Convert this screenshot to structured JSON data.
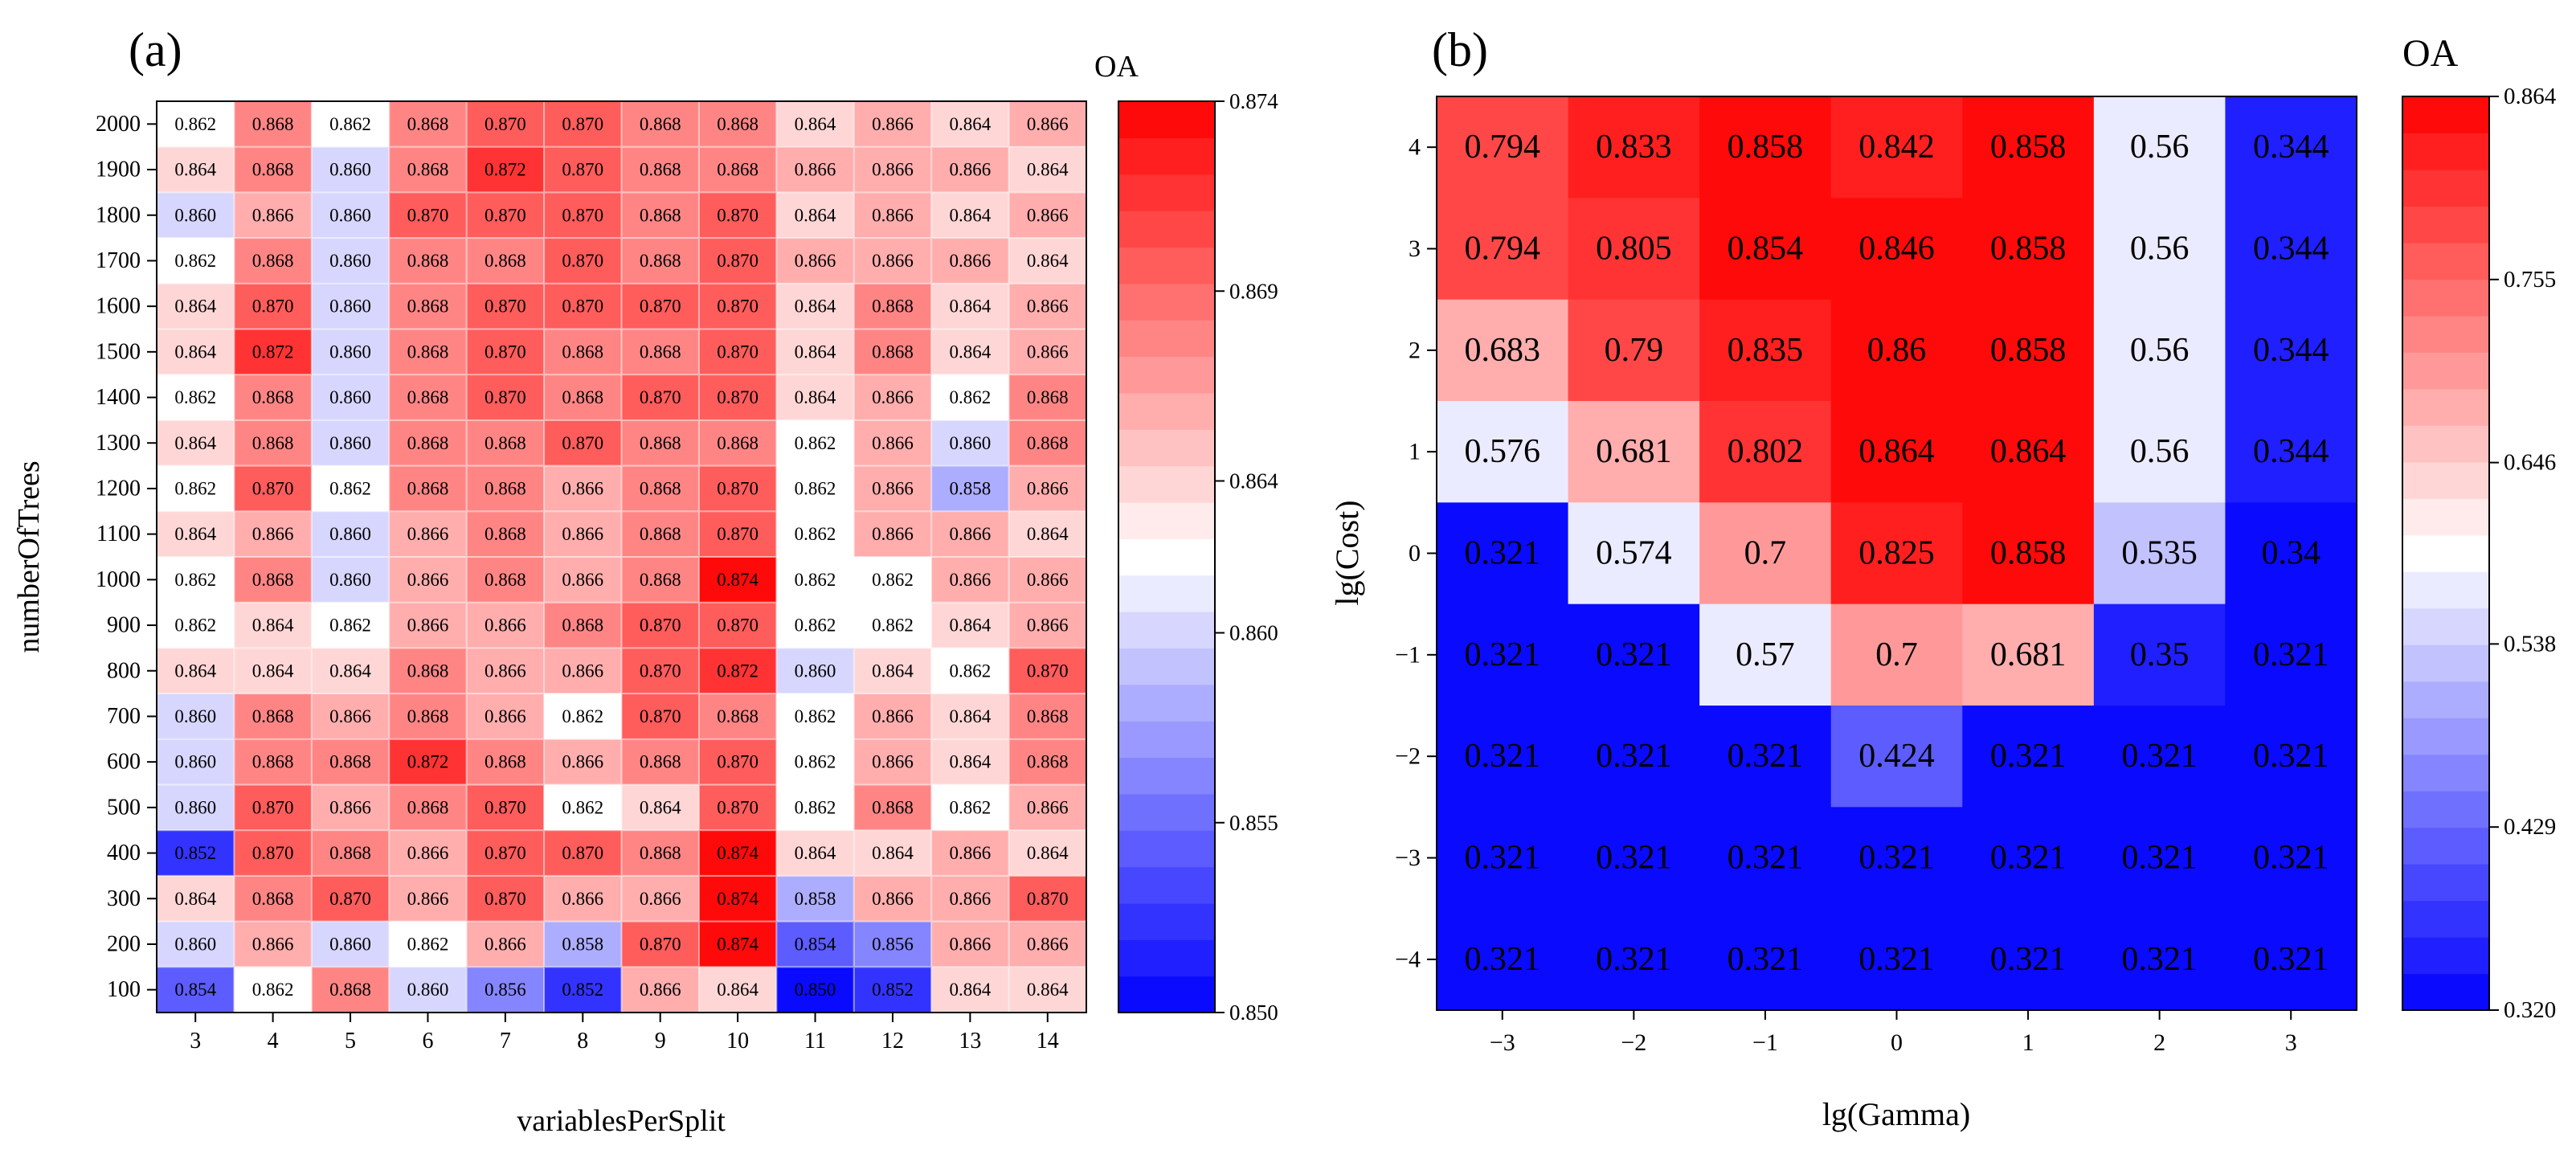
{
  "panel_a_label": "(a)",
  "panel_b_label": "(b)",
  "chart_data": [
    {
      "type": "heatmap",
      "panel": "(a)",
      "xlabel": "variablesPerSplit",
      "ylabel": "numberOfTrees",
      "x": [
        3,
        4,
        5,
        6,
        7,
        8,
        9,
        10,
        11,
        12,
        13,
        14
      ],
      "y": [
        2000,
        1900,
        1800,
        1700,
        1600,
        1500,
        1400,
        1300,
        1200,
        1100,
        1000,
        900,
        800,
        700,
        600,
        500,
        400,
        300,
        200,
        100
      ],
      "values": [
        [
          "0.862",
          "0.868",
          "0.862",
          "0.868",
          "0.870",
          "0.870",
          "0.868",
          "0.868",
          "0.864",
          "0.866",
          "0.864",
          "0.866"
        ],
        [
          "0.864",
          "0.868",
          "0.860",
          "0.868",
          "0.872",
          "0.870",
          "0.868",
          "0.868",
          "0.866",
          "0.866",
          "0.866",
          "0.864"
        ],
        [
          "0.860",
          "0.866",
          "0.860",
          "0.870",
          "0.870",
          "0.870",
          "0.868",
          "0.870",
          "0.864",
          "0.866",
          "0.864",
          "0.866"
        ],
        [
          "0.862",
          "0.868",
          "0.860",
          "0.868",
          "0.868",
          "0.870",
          "0.868",
          "0.870",
          "0.866",
          "0.866",
          "0.866",
          "0.864"
        ],
        [
          "0.864",
          "0.870",
          "0.860",
          "0.868",
          "0.870",
          "0.870",
          "0.870",
          "0.870",
          "0.864",
          "0.868",
          "0.864",
          "0.866"
        ],
        [
          "0.864",
          "0.872",
          "0.860",
          "0.868",
          "0.870",
          "0.868",
          "0.868",
          "0.870",
          "0.864",
          "0.868",
          "0.864",
          "0.866"
        ],
        [
          "0.862",
          "0.868",
          "0.860",
          "0.868",
          "0.870",
          "0.868",
          "0.870",
          "0.870",
          "0.864",
          "0.866",
          "0.862",
          "0.868"
        ],
        [
          "0.864",
          "0.868",
          "0.860",
          "0.868",
          "0.868",
          "0.870",
          "0.868",
          "0.868",
          "0.862",
          "0.866",
          "0.860",
          "0.868"
        ],
        [
          "0.862",
          "0.870",
          "0.862",
          "0.868",
          "0.868",
          "0.866",
          "0.868",
          "0.870",
          "0.862",
          "0.866",
          "0.858",
          "0.866"
        ],
        [
          "0.864",
          "0.866",
          "0.860",
          "0.866",
          "0.868",
          "0.866",
          "0.868",
          "0.870",
          "0.862",
          "0.866",
          "0.866",
          "0.864"
        ],
        [
          "0.862",
          "0.868",
          "0.860",
          "0.866",
          "0.868",
          "0.866",
          "0.868",
          "0.874",
          "0.862",
          "0.862",
          "0.866",
          "0.866"
        ],
        [
          "0.862",
          "0.864",
          "0.862",
          "0.866",
          "0.866",
          "0.868",
          "0.870",
          "0.870",
          "0.862",
          "0.862",
          "0.864",
          "0.866"
        ],
        [
          "0.864",
          "0.864",
          "0.864",
          "0.868",
          "0.866",
          "0.866",
          "0.870",
          "0.872",
          "0.860",
          "0.864",
          "0.862",
          "0.870"
        ],
        [
          "0.860",
          "0.868",
          "0.866",
          "0.868",
          "0.866",
          "0.862",
          "0.870",
          "0.868",
          "0.862",
          "0.866",
          "0.864",
          "0.868"
        ],
        [
          "0.860",
          "0.868",
          "0.868",
          "0.872",
          "0.868",
          "0.866",
          "0.868",
          "0.870",
          "0.862",
          "0.866",
          "0.864",
          "0.868"
        ],
        [
          "0.860",
          "0.870",
          "0.866",
          "0.868",
          "0.870",
          "0.862",
          "0.864",
          "0.870",
          "0.862",
          "0.868",
          "0.862",
          "0.866"
        ],
        [
          "0.852",
          "0.870",
          "0.868",
          "0.866",
          "0.870",
          "0.870",
          "0.868",
          "0.874",
          "0.864",
          "0.864",
          "0.866",
          "0.864"
        ],
        [
          "0.864",
          "0.868",
          "0.870",
          "0.866",
          "0.870",
          "0.866",
          "0.866",
          "0.874",
          "0.858",
          "0.866",
          "0.866",
          "0.870"
        ],
        [
          "0.860",
          "0.866",
          "0.860",
          "0.862",
          "0.866",
          "0.858",
          "0.870",
          "0.874",
          "0.854",
          "0.856",
          "0.866",
          "0.866"
        ],
        [
          "0.854",
          "0.862",
          "0.868",
          "0.860",
          "0.856",
          "0.852",
          "0.866",
          "0.864",
          "0.850",
          "0.852",
          "0.864",
          "0.864"
        ]
      ],
      "colorbar": {
        "title": "OA",
        "min": 0.85,
        "max": 0.874,
        "ticks": [
          "0.874",
          "0.869",
          "0.864",
          "0.860",
          "0.855",
          "0.850"
        ],
        "tick_values": [
          0.874,
          0.869,
          0.864,
          0.86,
          0.855,
          0.85
        ],
        "levels": 25,
        "colors": [
          "#0000ff",
          "#ffffff",
          "#ff0000"
        ]
      }
    },
    {
      "type": "heatmap",
      "panel": "(b)",
      "xlabel": "lg(Gamma)",
      "ylabel": "lg(Cost)",
      "x": [
        "−3",
        "−2",
        "−1",
        "0",
        "1",
        "2",
        "3"
      ],
      "y": [
        "4",
        "3",
        "2",
        "1",
        "0",
        "−1",
        "−2",
        "−3",
        "−4"
      ],
      "values": [
        [
          "0.794",
          "0.833",
          "0.858",
          "0.842",
          "0.858",
          "0.56",
          "0.344"
        ],
        [
          "0.794",
          "0.805",
          "0.854",
          "0.846",
          "0.858",
          "0.56",
          "0.344"
        ],
        [
          "0.683",
          "0.79",
          "0.835",
          "0.86",
          "0.858",
          "0.56",
          "0.344"
        ],
        [
          "0.576",
          "0.681",
          "0.802",
          "0.864",
          "0.864",
          "0.56",
          "0.344"
        ],
        [
          "0.321",
          "0.574",
          "0.7",
          "0.825",
          "0.858",
          "0.535",
          "0.34"
        ],
        [
          "0.321",
          "0.321",
          "0.57",
          "0.7",
          "0.681",
          "0.35",
          "0.321"
        ],
        [
          "0.321",
          "0.321",
          "0.321",
          "0.424",
          "0.321",
          "0.321",
          "0.321"
        ],
        [
          "0.321",
          "0.321",
          "0.321",
          "0.321",
          "0.321",
          "0.321",
          "0.321"
        ],
        [
          "0.321",
          "0.321",
          "0.321",
          "0.321",
          "0.321",
          "0.321",
          "0.321"
        ]
      ],
      "colorbar": {
        "title": "OA",
        "min": 0.32,
        "max": 0.864,
        "ticks": [
          "0.864",
          "0.755",
          "0.646",
          "0.538",
          "0.429",
          "0.320"
        ],
        "tick_values": [
          0.864,
          0.755,
          0.646,
          0.538,
          0.429,
          0.32
        ],
        "levels": 25,
        "colors": [
          "#0000ff",
          "#ffffff",
          "#ff0000"
        ]
      }
    }
  ]
}
